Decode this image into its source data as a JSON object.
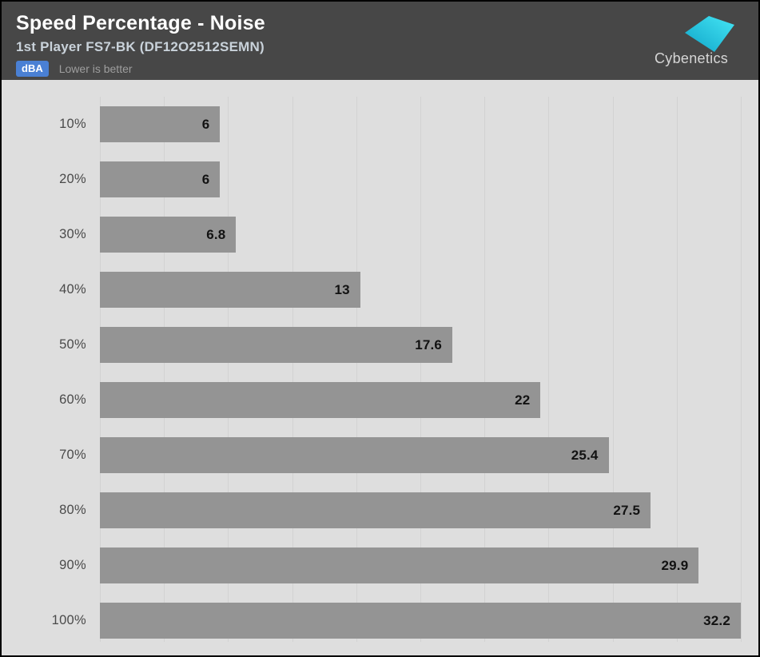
{
  "header": {
    "title": "Speed Percentage - Noise",
    "subtitle": "1st Player FS7-BK (DF12O2512SEMN)",
    "unit_badge": "dBA",
    "note": "Lower is better",
    "brand": "Cybenetics"
  },
  "colors": {
    "header_bg": "#474747",
    "chart_bg": "#dedede",
    "bar": "#949494",
    "gridline": "#d2d2d2",
    "badge_bg": "#4a80d4",
    "badge_text": "#ffffff",
    "subtitle": "#c9d2da",
    "note": "#9e9e9e",
    "value_label": "#121212",
    "category_label": "#4a4a4a",
    "brand_text": "#d6d6d6",
    "logo_grad_start": "#0fa4c8",
    "logo_grad_end": "#45e6f5"
  },
  "chart_data": {
    "type": "bar",
    "orientation": "horizontal",
    "title": "Speed Percentage - Noise",
    "unit": "dBA",
    "categories": [
      "10%",
      "20%",
      "30%",
      "40%",
      "50%",
      "60%",
      "70%",
      "80%",
      "90%",
      "100%"
    ],
    "values": [
      6,
      6,
      6.8,
      13,
      17.6,
      22,
      25.4,
      27.5,
      29.9,
      32.2
    ],
    "xlabel": "",
    "ylabel": "",
    "xlim": [
      0,
      32
    ],
    "gridline_count": 11,
    "axis_tick_labels_visible": false,
    "legend": false,
    "value_labels": true
  }
}
